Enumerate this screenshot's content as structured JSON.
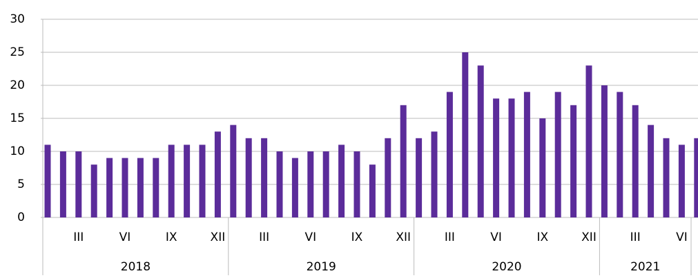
{
  "chart_data": {
    "type": "bar",
    "categories": [
      null,
      null,
      "III",
      null,
      null,
      "VI",
      null,
      null,
      "IX",
      null,
      null,
      "XII",
      null,
      null,
      "III",
      null,
      null,
      "VI",
      null,
      null,
      "IX",
      null,
      null,
      "XII",
      null,
      null,
      "III",
      null,
      null,
      "VI",
      null,
      null,
      "IX",
      null,
      null,
      "XII",
      null,
      null,
      "III",
      null,
      null,
      "VI",
      null
    ],
    "groups": [
      {
        "label": "2018",
        "span": 12
      },
      {
        "label": "2019",
        "span": 12
      },
      {
        "label": "2020",
        "span": 12
      },
      {
        "label": "2021",
        "span": 7
      }
    ],
    "values": [
      11,
      10,
      10,
      8,
      9,
      9,
      9,
      9,
      11,
      11,
      11,
      13,
      14,
      12,
      12,
      10,
      9,
      10,
      10,
      11,
      10,
      8,
      12,
      17,
      12,
      13,
      19,
      25,
      23,
      18,
      18,
      19,
      15,
      19,
      17,
      23,
      20,
      19,
      17,
      14,
      12,
      11,
      12
    ],
    "color": "#5b2c9a",
    "ylim": [
      0,
      30
    ],
    "yticks": [
      0,
      5,
      10,
      15,
      20,
      25,
      30
    ],
    "grid": true
  }
}
